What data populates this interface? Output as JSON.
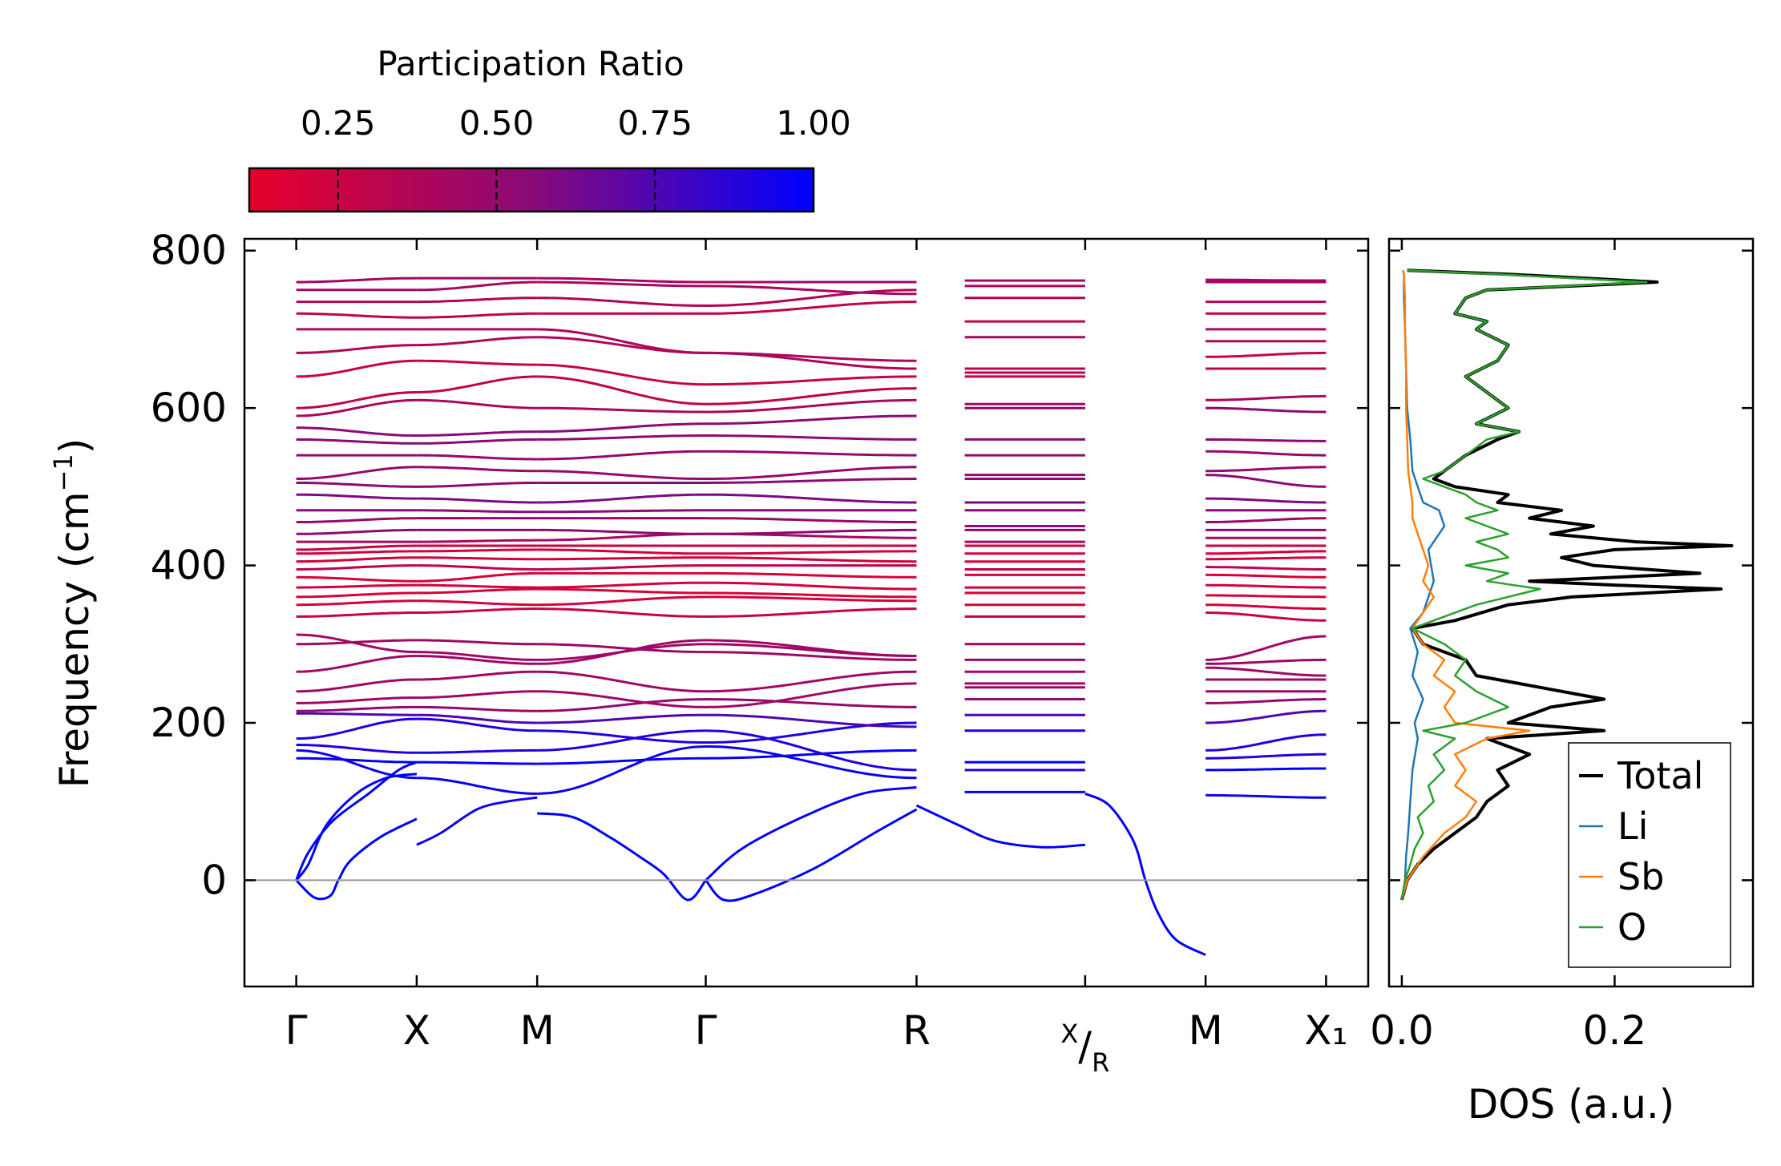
{
  "colors": {
    "cmap_low": "#e6002a",
    "cmap_mid": "#8a0a78",
    "cmap_high": "#0000ff",
    "total": "#000000",
    "li": "#1f77b4",
    "sb": "#ff7f0e",
    "o": "#2ca02c",
    "zero_line": "#999999"
  },
  "chart_data": [
    {
      "type": "line",
      "name": "phonon-band-structure",
      "ylabel": "Frequency (cm",
      "ylabel_sup": "−1",
      "ylabel_close": ")",
      "ylim": [
        -135,
        815
      ],
      "yticks": [
        0,
        200,
        400,
        600,
        800
      ],
      "path_labels": [
        "Γ",
        "X",
        "M",
        "Γ",
        "R",
        "X/R",
        "M",
        "X₁"
      ],
      "path_positions": [
        0,
        1,
        2,
        3.4,
        5.15,
        6.55,
        7.55,
        8.55
      ],
      "xlim": [
        -0.43,
        8.9
      ],
      "segments": [
        [
          0,
          1
        ],
        [
          1,
          2
        ],
        [
          2,
          3.4
        ],
        [
          3.4,
          5.15
        ],
        [
          5.55,
          6.55
        ],
        [
          7.55,
          8.55
        ]
      ],
      "colorbar": {
        "label": "Participation Ratio",
        "ticks": [
          0.25,
          0.5,
          0.75,
          1.0
        ],
        "tick_labels": [
          "0.25",
          "0.50",
          "0.75",
          "1.00"
        ],
        "range": [
          0.11,
          1.0
        ]
      },
      "acoustic_branches": [
        {
          "x": [
            0,
            0.1,
            0.25,
            0.5,
            0.75,
            1.0
          ],
          "y": [
            0,
            20,
            70,
            110,
            130,
            135
          ],
          "pr": 1.0
        },
        {
          "x": [
            0,
            0.1,
            0.3,
            0.6,
            0.85,
            1.0
          ],
          "y": [
            0,
            35,
            75,
            110,
            140,
            150
          ],
          "pr": 1.0
        },
        {
          "x": [
            0,
            0.15,
            0.28,
            0.35,
            0.45,
            0.7,
            1.0
          ],
          "y": [
            0,
            -22,
            -20,
            0,
            25,
            55,
            78
          ],
          "pr": 1.0
        },
        {
          "x": [
            1,
            1.2,
            1.5,
            1.75,
            2.0
          ],
          "y": [
            45,
            60,
            90,
            100,
            105
          ],
          "pr": 0.95
        },
        {
          "x": [
            2,
            2.3,
            2.6,
            2.85,
            3.05,
            3.25,
            3.4
          ],
          "y": [
            85,
            80,
            55,
            30,
            8,
            -25,
            0
          ],
          "pr": 1.0
        },
        {
          "x": [
            3.4,
            3.55,
            3.8,
            4.3,
            4.8,
            5.15
          ],
          "y": [
            0,
            -25,
            -18,
            15,
            60,
            90
          ],
          "pr": 1.0
        },
        {
          "x": [
            3.4,
            3.7,
            4.2,
            4.7,
            5.15
          ],
          "y": [
            0,
            40,
            80,
            110,
            118
          ],
          "pr": 0.98
        },
        {
          "x": [
            5.15,
            5.5,
            5.8,
            6.2,
            6.55
          ],
          "y": [
            95,
            70,
            50,
            42,
            45
          ],
          "pr": 1.0
        },
        {
          "x": [
            6.55,
            6.75,
            6.95,
            7.05,
            7.15,
            7.3,
            7.55
          ],
          "y": [
            110,
            95,
            50,
            0,
            -40,
            -75,
            -95
          ],
          "pr": 1.0
        }
      ],
      "optical_branches": [
        {
          "y": [
            155,
            150,
            148,
            155,
            165,
            150,
            140,
            142
          ],
          "pr": 0.98
        },
        {
          "y": [
            165,
            130,
            110,
            170,
            130,
            112,
            108,
            105
          ],
          "pr": 0.96
        },
        {
          "y": [
            172,
            162,
            165,
            190,
            140,
            140,
            155,
            160
          ],
          "pr": 0.9
        },
        {
          "y": [
            180,
            205,
            190,
            175,
            200,
            190,
            165,
            185
          ],
          "pr": 0.9
        },
        {
          "y": [
            212,
            210,
            200,
            210,
            195,
            210,
            200,
            215
          ],
          "pr": 0.75
        },
        {
          "y": [
            215,
            220,
            215,
            230,
            220,
            230,
            225,
            230
          ],
          "pr": 0.5
        },
        {
          "y": [
            225,
            232,
            240,
            220,
            250,
            245,
            240,
            240
          ],
          "pr": 0.45
        },
        {
          "y": [
            240,
            255,
            265,
            240,
            265,
            250,
            255,
            255
          ],
          "pr": 0.45
        },
        {
          "y": [
            265,
            285,
            275,
            305,
            285,
            265,
            270,
            260
          ],
          "pr": 0.45
        },
        {
          "y": [
            300,
            305,
            300,
            290,
            280,
            280,
            275,
            280
          ],
          "pr": 0.45
        },
        {
          "y": [
            312,
            290,
            280,
            300,
            285,
            300,
            280,
            310
          ],
          "pr": 0.45
        },
        {
          "y": [
            335,
            340,
            345,
            335,
            345,
            335,
            340,
            330
          ],
          "pr": 0.25
        },
        {
          "y": [
            350,
            355,
            350,
            360,
            355,
            350,
            350,
            345
          ],
          "pr": 0.2
        },
        {
          "y": [
            360,
            365,
            370,
            365,
            360,
            365,
            362,
            360
          ],
          "pr": 0.18
        },
        {
          "y": [
            372,
            375,
            372,
            378,
            370,
            372,
            375,
            372
          ],
          "pr": 0.2
        },
        {
          "y": [
            385,
            380,
            390,
            390,
            385,
            388,
            388,
            385
          ],
          "pr": 0.18
        },
        {
          "y": [
            395,
            400,
            395,
            400,
            400,
            395,
            398,
            395
          ],
          "pr": 0.3
        },
        {
          "y": [
            405,
            410,
            408,
            410,
            405,
            405,
            408,
            410
          ],
          "pr": 0.2
        },
        {
          "y": [
            415,
            418,
            420,
            415,
            418,
            415,
            415,
            418
          ],
          "pr": 0.2
        },
        {
          "y": [
            420,
            425,
            425,
            425,
            425,
            425,
            425,
            425
          ],
          "pr": 0.25
        },
        {
          "y": [
            430,
            430,
            432,
            440,
            435,
            430,
            435,
            435
          ],
          "pr": 0.4
        },
        {
          "y": [
            440,
            445,
            445,
            440,
            445,
            445,
            445,
            445
          ],
          "pr": 0.55
        },
        {
          "y": [
            455,
            460,
            460,
            460,
            455,
            450,
            455,
            460
          ],
          "pr": 0.5
        },
        {
          "y": [
            470,
            470,
            468,
            470,
            470,
            470,
            470,
            470
          ],
          "pr": 0.55
        },
        {
          "y": [
            490,
            485,
            480,
            490,
            480,
            480,
            485,
            480
          ],
          "pr": 0.6
        },
        {
          "y": [
            505,
            500,
            505,
            505,
            510,
            510,
            515,
            500
          ],
          "pr": 0.55
        },
        {
          "y": [
            510,
            525,
            520,
            510,
            525,
            515,
            520,
            525
          ],
          "pr": 0.5
        },
        {
          "y": [
            540,
            540,
            535,
            545,
            540,
            540,
            545,
            540
          ],
          "pr": 0.5
        },
        {
          "y": [
            560,
            555,
            560,
            565,
            560,
            560,
            560,
            558
          ],
          "pr": 0.55
        },
        {
          "y": [
            575,
            565,
            570,
            580,
            590,
            600,
            600,
            595
          ],
          "pr": 0.55
        },
        {
          "y": [
            590,
            610,
            600,
            595,
            610,
            605,
            610,
            615
          ],
          "pr": 0.4
        },
        {
          "y": [
            600,
            620,
            640,
            605,
            625,
            640,
            650,
            650
          ],
          "pr": 0.3
        },
        {
          "y": [
            640,
            660,
            655,
            630,
            640,
            645,
            665,
            670
          ],
          "pr": 0.25
        },
        {
          "y": [
            670,
            680,
            690,
            670,
            650,
            650,
            685,
            685
          ],
          "pr": 0.35
        },
        {
          "y": [
            700,
            700,
            700,
            670,
            660,
            690,
            700,
            700
          ],
          "pr": 0.4
        },
        {
          "y": [
            720,
            715,
            720,
            720,
            735,
            710,
            720,
            720
          ],
          "pr": 0.3
        },
        {
          "y": [
            735,
            735,
            740,
            730,
            750,
            740,
            735,
            735
          ],
          "pr": 0.35
        },
        {
          "y": [
            750,
            750,
            760,
            755,
            745,
            755,
            760,
            760
          ],
          "pr": 0.4
        },
        {
          "y": [
            760,
            765,
            765,
            760,
            760,
            762,
            763,
            762
          ],
          "pr": 0.45
        }
      ]
    },
    {
      "type": "line",
      "name": "phonon-dos",
      "xlabel": "DOS (a.u.)",
      "xlim": [
        -0.012,
        0.33
      ],
      "xticks": [
        0.0,
        0.2
      ],
      "xtick_labels": [
        "0.0",
        "0.2"
      ],
      "ylim": [
        -135,
        815
      ],
      "legend": [
        "Total",
        "Li",
        "Sb",
        "O"
      ],
      "legend_position": "lower-right",
      "series": [
        {
          "name": "Total",
          "y": [
            -25,
            0,
            20,
            40,
            60,
            80,
            100,
            120,
            140,
            160,
            180,
            190,
            200,
            220,
            230,
            250,
            260,
            280,
            300,
            320,
            330,
            350,
            360,
            370,
            375,
            380,
            390,
            400,
            410,
            420,
            425,
            430,
            440,
            450,
            460,
            470,
            480,
            490,
            500,
            510,
            520,
            540,
            560,
            570,
            580,
            600,
            620,
            640,
            660,
            680,
            700,
            710,
            720,
            740,
            750,
            760,
            770,
            775
          ],
          "x": [
            0,
            0.005,
            0.015,
            0.03,
            0.05,
            0.07,
            0.08,
            0.1,
            0.09,
            0.12,
            0.08,
            0.19,
            0.1,
            0.14,
            0.19,
            0.11,
            0.07,
            0.06,
            0.02,
            0.01,
            0.05,
            0.1,
            0.16,
            0.3,
            0.2,
            0.12,
            0.28,
            0.18,
            0.15,
            0.2,
            0.31,
            0.22,
            0.14,
            0.18,
            0.12,
            0.15,
            0.09,
            0.1,
            0.05,
            0.03,
            0.04,
            0.06,
            0.09,
            0.11,
            0.07,
            0.1,
            0.08,
            0.06,
            0.09,
            0.1,
            0.07,
            0.08,
            0.05,
            0.06,
            0.08,
            0.24,
            0.1,
            0.005
          ]
        },
        {
          "name": "Li",
          "y": [
            -25,
            0,
            30,
            60,
            100,
            140,
            180,
            200,
            230,
            260,
            290,
            320,
            340,
            380,
            420,
            450,
            470,
            480,
            500,
            520,
            560,
            600,
            650,
            700,
            740,
            770,
            775
          ],
          "x": [
            0,
            0.003,
            0.004,
            0.006,
            0.008,
            0.01,
            0.015,
            0.012,
            0.02,
            0.01,
            0.015,
            0.008,
            0.02,
            0.03,
            0.025,
            0.04,
            0.035,
            0.02,
            0.015,
            0.01,
            0.008,
            0.005,
            0.004,
            0.003,
            0.002,
            0.002,
            0.001
          ]
        },
        {
          "name": "Sb",
          "y": [
            -25,
            0,
            30,
            60,
            80,
            100,
            120,
            140,
            160,
            180,
            190,
            200,
            220,
            240,
            260,
            280,
            300,
            320,
            340,
            360,
            380,
            400,
            420,
            440,
            460,
            480,
            500,
            520,
            560,
            600,
            650,
            700,
            740,
            770,
            775
          ],
          "x": [
            0,
            0.005,
            0.02,
            0.04,
            0.06,
            0.07,
            0.05,
            0.06,
            0.05,
            0.08,
            0.12,
            0.05,
            0.04,
            0.05,
            0.03,
            0.04,
            0.02,
            0.01,
            0.02,
            0.03,
            0.02,
            0.025,
            0.02,
            0.015,
            0.01,
            0.01,
            0.008,
            0.006,
            0.005,
            0.004,
            0.004,
            0.003,
            0.003,
            0.002,
            0.001
          ]
        },
        {
          "name": "O",
          "y": [
            -25,
            0,
            20,
            40,
            60,
            80,
            100,
            120,
            140,
            160,
            180,
            190,
            200,
            220,
            240,
            260,
            280,
            300,
            320,
            330,
            350,
            370,
            380,
            390,
            400,
            410,
            420,
            430,
            440,
            450,
            460,
            470,
            480,
            490,
            500,
            510,
            520,
            540,
            560,
            570,
            580,
            600,
            620,
            640,
            660,
            680,
            700,
            710,
            720,
            740,
            750,
            760,
            770,
            775
          ],
          "x": [
            0,
            0.003,
            0.008,
            0.012,
            0.02,
            0.015,
            0.03,
            0.025,
            0.04,
            0.03,
            0.05,
            0.02,
            0.06,
            0.1,
            0.07,
            0.05,
            0.06,
            0.04,
            0.01,
            0.03,
            0.07,
            0.13,
            0.08,
            0.1,
            0.06,
            0.1,
            0.09,
            0.07,
            0.1,
            0.08,
            0.06,
            0.09,
            0.07,
            0.06,
            0.04,
            0.02,
            0.04,
            0.06,
            0.08,
            0.11,
            0.07,
            0.1,
            0.08,
            0.06,
            0.09,
            0.1,
            0.07,
            0.08,
            0.05,
            0.06,
            0.08,
            0.23,
            0.09,
            0.005
          ]
        }
      ]
    }
  ]
}
